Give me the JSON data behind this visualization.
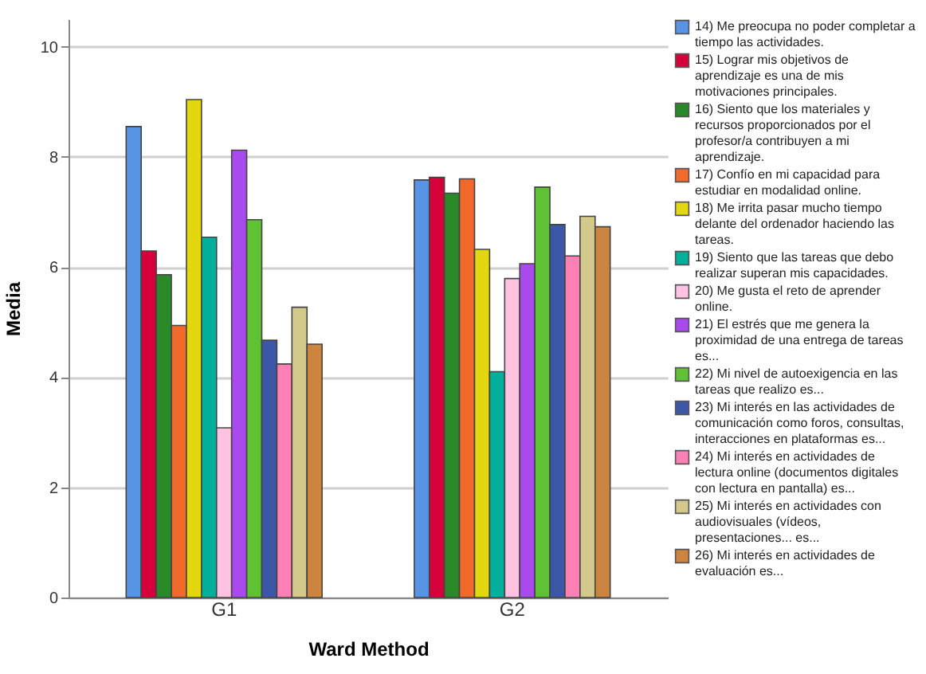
{
  "chart_data": {
    "type": "bar",
    "xlabel": "Ward Method",
    "ylabel": "Media",
    "categories": [
      "G1",
      "G2"
    ],
    "ylim": [
      0,
      10.5
    ],
    "yticks": [
      0,
      2,
      4,
      6,
      8,
      10
    ],
    "grid": "y",
    "legend": "right",
    "series": [
      {
        "name": "14) Me preocupa no poder completar a tiempo las actividades.",
        "color": "#5794e3",
        "values": [
          8.55,
          7.58
        ]
      },
      {
        "name": "15) Lograr mis objetivos de aprendizaje es una de mis motivaciones principales.",
        "color": "#d6003a",
        "values": [
          6.29,
          7.63
        ]
      },
      {
        "name": "16) Siento que los materiales y recursos proporcionados por el profesor/a contribuyen a mi aprendizaje.",
        "color": "#2a8a2a",
        "values": [
          5.86,
          7.34
        ]
      },
      {
        "name": "17) Confío en mi capacidad para estudiar en modalidad online.",
        "color": "#f26a2b",
        "values": [
          4.94,
          7.6
        ]
      },
      {
        "name": "18) Me irrita pasar mucho tiempo delante del ordenador haciendo las tareas.",
        "color": "#e3d80f",
        "values": [
          9.04,
          6.32
        ]
      },
      {
        "name": "19) Siento que las tareas que debo realizar superan mis capacidades.",
        "color": "#00b09b",
        "values": [
          6.54,
          4.1
        ]
      },
      {
        "name": "20) Me gusta el reto de aprender online.",
        "color": "#ffc2e0",
        "values": [
          3.08,
          5.79
        ]
      },
      {
        "name": "21) El estrés que me genera la proximidad de una entrega de tareas es...",
        "color": "#a94aef",
        "values": [
          8.12,
          6.06
        ]
      },
      {
        "name": "22) Mi nivel de autoexigencia en las tareas que realizo es...",
        "color": "#5fc234",
        "values": [
          6.86,
          7.45
        ]
      },
      {
        "name": "23) Mi interés en las actividades de comunicación como foros,  consultas, interacciones en plataformas es...",
        "color": "#3c56a8",
        "values": [
          4.67,
          6.77
        ]
      },
      {
        "name": "24) Mi interés en actividades de lectura online (documentos digitales con lectura en pantalla) es...",
        "color": "#ff80b4",
        "values": [
          4.24,
          6.2
        ]
      },
      {
        "name": "25) Mi interés en actividades con audiovisuales (vídeos, presentaciones... es...",
        "color": "#d2c98a",
        "values": [
          5.27,
          6.92
        ]
      },
      {
        "name": "26) Mi interés en actividades de evaluación es...",
        "color": "#cc843f",
        "values": [
          4.6,
          6.73
        ]
      }
    ]
  }
}
